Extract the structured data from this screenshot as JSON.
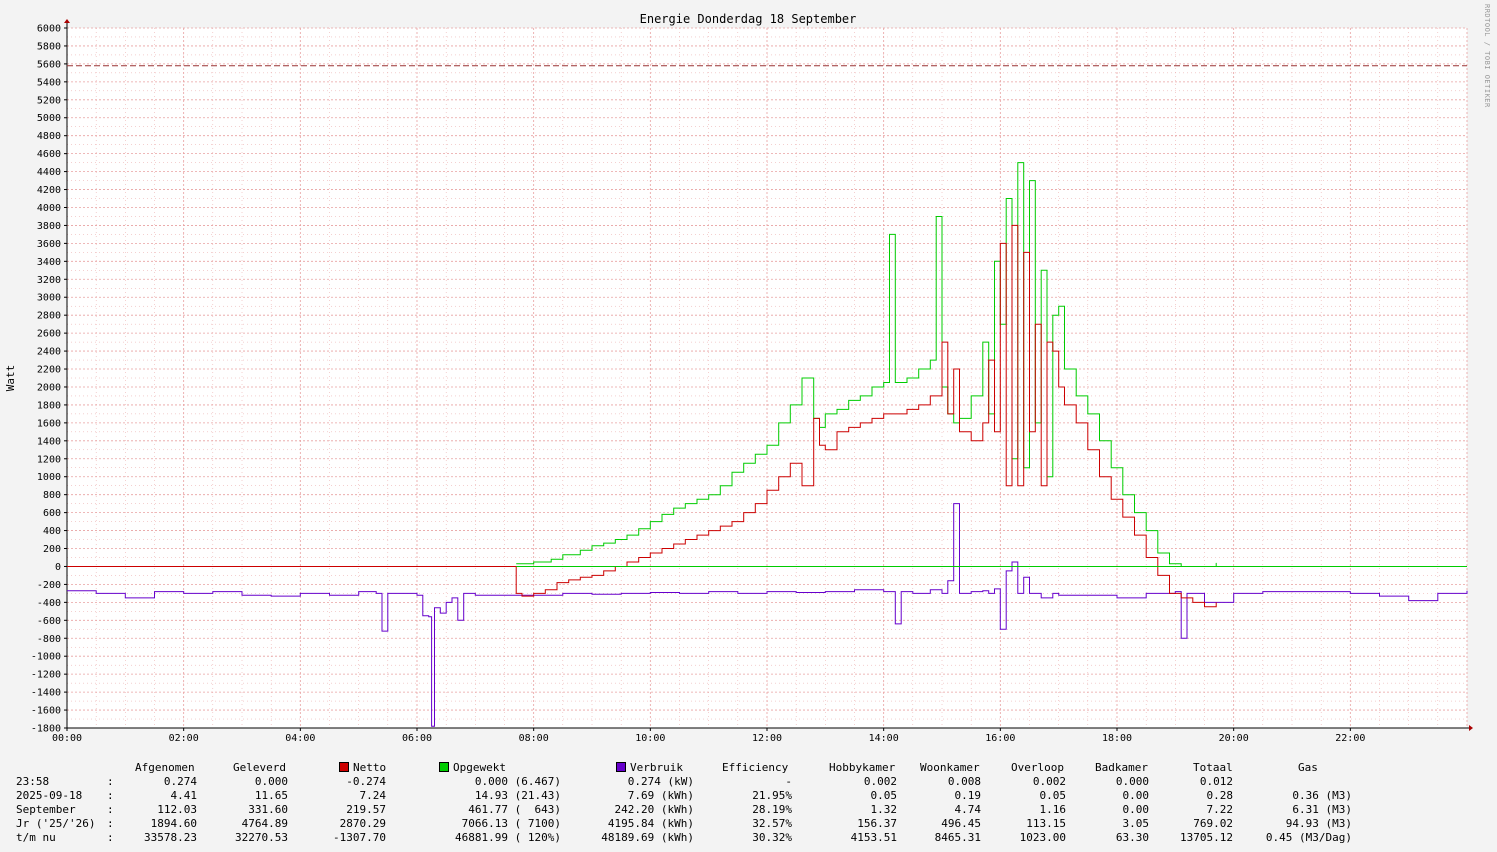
{
  "chart_data": {
    "type": "line",
    "title": "Energie Donderdag 18 September",
    "ylabel": "Watt",
    "xlabel": "",
    "ylim": [
      -1800,
      6000
    ],
    "xlim_hours": [
      0,
      24
    ],
    "yticks": [
      "6000",
      "5800",
      "5600",
      "5400",
      "5200",
      "5000",
      "4800",
      "4600",
      "4400",
      "4200",
      "4000",
      "3800",
      "3600",
      "3400",
      "3200",
      "3000",
      "2800",
      "2600",
      "2400",
      "2200",
      "2000",
      "1800",
      "1600",
      "1400",
      "1200",
      "1000",
      "800",
      "600",
      "400",
      "200",
      "0",
      "-200",
      "-400",
      "-600",
      "-800",
      "-1000",
      "-1200",
      "-1400",
      "-1600",
      "-1800"
    ],
    "xticks": [
      "00:00",
      "02:00",
      "04:00",
      "06:00",
      "08:00",
      "10:00",
      "12:00",
      "14:00",
      "16:00",
      "18:00",
      "20:00",
      "22:00"
    ],
    "reference_line": 5580,
    "colors": {
      "netto": "#cc0000",
      "opgewekt": "#00cc00",
      "verbruik": "#6600cc",
      "reference": "#993333",
      "grid": "#e8a0a0"
    },
    "series": [
      {
        "name": "Opgewekt",
        "color": "#00cc00",
        "x": [
          7.7,
          8.0,
          8.3,
          8.5,
          8.8,
          9.0,
          9.2,
          9.4,
          9.6,
          9.8,
          10.0,
          10.2,
          10.4,
          10.6,
          10.8,
          11.0,
          11.2,
          11.4,
          11.6,
          11.8,
          12.0,
          12.2,
          12.4,
          12.6,
          12.8,
          12.9,
          13.0,
          13.2,
          13.4,
          13.6,
          13.8,
          14.0,
          14.1,
          14.2,
          14.4,
          14.6,
          14.8,
          14.9,
          15.0,
          15.1,
          15.2,
          15.3,
          15.5,
          15.7,
          15.8,
          15.9,
          16.0,
          16.1,
          16.2,
          16.3,
          16.4,
          16.5,
          16.6,
          16.7,
          16.8,
          16.9,
          17.0,
          17.1,
          17.3,
          17.5,
          17.7,
          17.9,
          18.1,
          18.3,
          18.5,
          18.7,
          18.9,
          19.1,
          19.3,
          19.5,
          19.7
        ],
        "y": [
          30,
          50,
          80,
          130,
          180,
          230,
          260,
          300,
          350,
          420,
          500,
          580,
          650,
          700,
          750,
          800,
          900,
          1050,
          1150,
          1250,
          1350,
          1600,
          1800,
          2100,
          1650,
          1550,
          1700,
          1750,
          1850,
          1900,
          2000,
          2050,
          3700,
          2050,
          2100,
          2200,
          2300,
          3900,
          2000,
          1700,
          1600,
          1650,
          1900,
          2500,
          1700,
          3400,
          2700,
          4100,
          1200,
          4500,
          1100,
          4300,
          1600,
          3300,
          1000,
          2800,
          2900,
          2200,
          1900,
          1700,
          1400,
          1100,
          800,
          600,
          400,
          150,
          30,
          0,
          0,
          0,
          40
        ]
      },
      {
        "name": "Netto",
        "color": "#cc0000",
        "x": [
          0,
          7.7,
          7.8,
          8.0,
          8.2,
          8.4,
          8.6,
          8.8,
          9.0,
          9.2,
          9.4,
          9.6,
          9.8,
          10.0,
          10.2,
          10.4,
          10.6,
          10.8,
          11.0,
          11.2,
          11.4,
          11.6,
          11.8,
          12.0,
          12.2,
          12.4,
          12.6,
          12.8,
          12.9,
          13.0,
          13.2,
          13.4,
          13.6,
          13.8,
          14.0,
          14.2,
          14.4,
          14.6,
          14.8,
          15.0,
          15.1,
          15.2,
          15.3,
          15.5,
          15.7,
          15.8,
          15.9,
          16.0,
          16.1,
          16.2,
          16.3,
          16.4,
          16.5,
          16.6,
          16.7,
          16.8,
          16.9,
          17.0,
          17.1,
          17.3,
          17.5,
          17.7,
          17.9,
          18.1,
          18.3,
          18.5,
          18.7,
          18.9,
          19.1,
          19.3,
          19.5,
          19.7
        ],
        "y": [
          0,
          -300,
          -330,
          -300,
          -260,
          -180,
          -150,
          -120,
          -100,
          -50,
          0,
          50,
          100,
          150,
          200,
          250,
          300,
          350,
          400,
          450,
          500,
          600,
          700,
          850,
          1000,
          1150,
          900,
          1650,
          1350,
          1300,
          1500,
          1550,
          1600,
          1650,
          1700,
          1700,
          1750,
          1800,
          1900,
          2500,
          1700,
          2200,
          1500,
          1400,
          1600,
          2300,
          1500,
          3600,
          900,
          3800,
          900,
          3500,
          1500,
          2700,
          900,
          2500,
          2400,
          2000,
          1800,
          1600,
          1300,
          1000,
          750,
          550,
          350,
          100,
          -100,
          -300,
          -350,
          -400,
          -450,
          -400
        ]
      },
      {
        "name": "Verbruik",
        "color": "#6600cc",
        "x": [
          0,
          0.5,
          1.0,
          1.5,
          2.0,
          2.5,
          3.0,
          3.5,
          4.0,
          4.5,
          5.0,
          5.3,
          5.4,
          5.5,
          6.0,
          6.1,
          6.2,
          6.25,
          6.3,
          6.4,
          6.5,
          6.6,
          6.7,
          6.8,
          7.0,
          7.5,
          8.0,
          8.5,
          9.0,
          9.5,
          10.0,
          10.5,
          11.0,
          11.5,
          12.0,
          12.5,
          13.0,
          13.5,
          14.0,
          14.2,
          14.3,
          14.5,
          14.8,
          15.0,
          15.1,
          15.2,
          15.3,
          15.5,
          15.7,
          15.8,
          15.9,
          16.0,
          16.1,
          16.2,
          16.3,
          16.4,
          16.5,
          16.7,
          16.9,
          17.0,
          17.5,
          18.0,
          18.5,
          19.0,
          19.1,
          19.2,
          19.5,
          20.0,
          20.5,
          21.0,
          21.5,
          22.0,
          22.5,
          23.0,
          23.5,
          24.0
        ],
        "y": [
          -270,
          -300,
          -350,
          -280,
          -300,
          -280,
          -320,
          -330,
          -300,
          -320,
          -280,
          -300,
          -720,
          -300,
          -320,
          -550,
          -560,
          -1780,
          -460,
          -520,
          -400,
          -350,
          -600,
          -300,
          -320,
          -320,
          -320,
          -300,
          -310,
          -300,
          -290,
          -300,
          -280,
          -300,
          -280,
          -290,
          -280,
          -260,
          -280,
          -640,
          -280,
          -300,
          -260,
          -300,
          -160,
          700,
          -300,
          -280,
          -270,
          -300,
          -250,
          -700,
          -50,
          50,
          -300,
          -120,
          -300,
          -350,
          -300,
          -320,
          -320,
          -350,
          -300,
          -280,
          -800,
          -300,
          -400,
          -300,
          -280,
          -280,
          -280,
          -300,
          -330,
          -380,
          -300,
          -270
        ]
      }
    ]
  },
  "side_label": "RRDTOOL / TOBI OETIKER",
  "table": {
    "headers": [
      "Afgenomen",
      "Geleverd",
      "Netto",
      "Opgewekt",
      "Verbruik",
      "Efficiency",
      "Hobbykamer",
      "Woonkamer",
      "Overloop",
      "Badkamer",
      "Totaal",
      "Gas"
    ],
    "rows": [
      {
        "label": "23:58",
        "sep": ":",
        "cells": [
          "0.274",
          "0.000",
          "-0.274",
          "0.000 (6.467)",
          "0.274 (kW)",
          "-",
          "0.002",
          "0.008",
          "0.002",
          "0.000",
          "0.012",
          ""
        ]
      },
      {
        "label": "2025-09-18",
        "sep": ":",
        "cells": [
          "4.41",
          "11.65",
          "7.24",
          "14.93 (21.43)",
          "7.69 (kWh)",
          "21.95%",
          "0.05",
          "0.19",
          "0.05",
          "0.00",
          "0.28",
          "0.36 (M3)"
        ]
      },
      {
        "label": "September",
        "sep": ":",
        "cells": [
          "112.03",
          "331.60",
          "219.57",
          "461.77 (  643)",
          "242.20 (kWh)",
          "28.19%",
          "1.32",
          "4.74",
          "1.16",
          "0.00",
          "7.22",
          "6.31 (M3)"
        ]
      },
      {
        "label": "Jr ('25/'26)",
        "sep": ":",
        "cells": [
          "1894.60",
          "4764.89",
          "2870.29",
          "7066.13 ( 7100)",
          "4195.84 (kWh)",
          "32.57%",
          "156.37",
          "496.45",
          "113.15",
          "3.05",
          "769.02",
          "94.93 (M3)"
        ]
      },
      {
        "label": "t/m nu",
        "sep": ":",
        "cells": [
          "33578.23",
          "32270.53",
          "-1307.70",
          "46881.99 ( 120%)",
          "48189.69 (kWh)",
          "30.32%",
          "4153.51",
          "8465.31",
          "1023.00",
          "63.30",
          "13705.12",
          "0.45 (M3/Dag)"
        ]
      }
    ]
  }
}
